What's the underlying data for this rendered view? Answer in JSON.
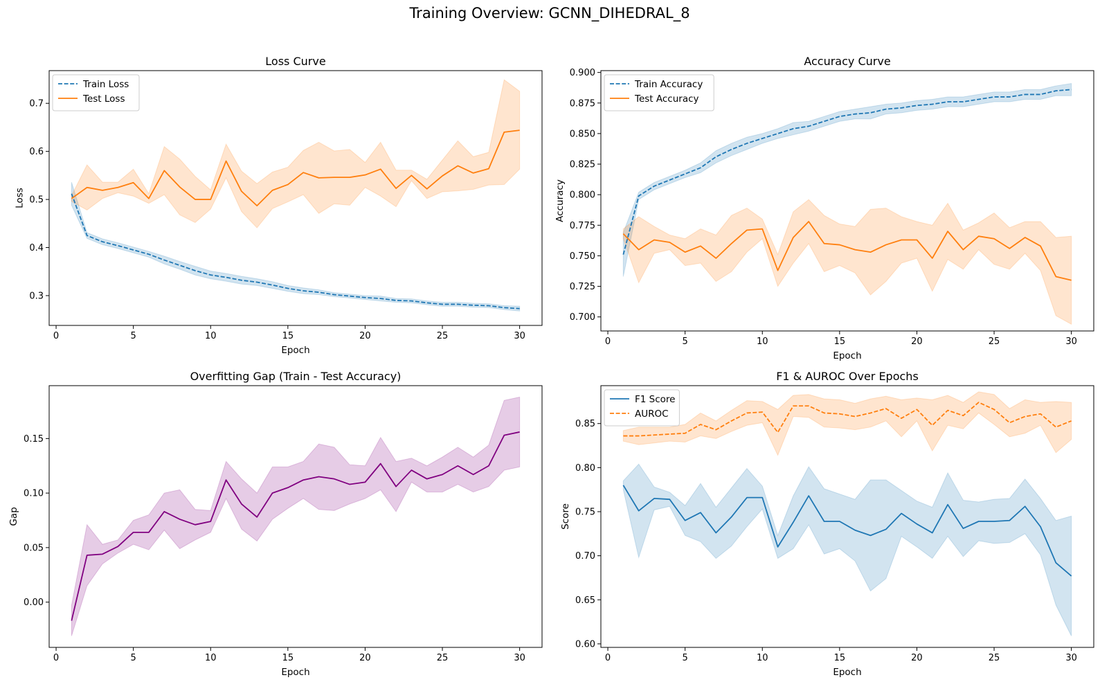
{
  "figure": {
    "title": "Training Overview: GCNN_DIHEDRAL_8"
  },
  "chart_data": [
    {
      "id": "loss",
      "type": "line",
      "title": "Loss Curve",
      "xlabel": "Epoch",
      "ylabel": "Loss",
      "xlim": [
        -0.45,
        31.45
      ],
      "ylim": [
        0.238,
        0.768
      ],
      "xticks": [
        0,
        5,
        10,
        15,
        20,
        25,
        30
      ],
      "xtick_labels": [
        "0",
        "5",
        "10",
        "15",
        "20",
        "25",
        "30"
      ],
      "yticks": [
        0.3,
        0.4,
        0.5,
        0.6,
        0.7
      ],
      "ytick_labels": [
        "0.3",
        "0.4",
        "0.5",
        "0.6",
        "0.7"
      ],
      "grid": false,
      "legend": "upper-left",
      "x": [
        1,
        2,
        3,
        4,
        5,
        6,
        7,
        8,
        9,
        10,
        11,
        12,
        13,
        14,
        15,
        16,
        17,
        18,
        19,
        20,
        21,
        22,
        23,
        24,
        25,
        26,
        27,
        28,
        29,
        30
      ],
      "series": [
        {
          "name": "Train Loss",
          "color": "#1f77b4",
          "dash": "dashed",
          "values": [
            0.512,
            0.425,
            0.412,
            0.404,
            0.395,
            0.386,
            0.374,
            0.363,
            0.352,
            0.343,
            0.338,
            0.332,
            0.328,
            0.322,
            0.315,
            0.31,
            0.307,
            0.302,
            0.299,
            0.296,
            0.294,
            0.29,
            0.289,
            0.285,
            0.282,
            0.282,
            0.28,
            0.279,
            0.275,
            0.273
          ],
          "lower": [
            0.488,
            0.419,
            0.406,
            0.398,
            0.389,
            0.38,
            0.366,
            0.355,
            0.343,
            0.335,
            0.33,
            0.324,
            0.321,
            0.315,
            0.309,
            0.304,
            0.302,
            0.298,
            0.295,
            0.292,
            0.289,
            0.286,
            0.285,
            0.281,
            0.278,
            0.278,
            0.276,
            0.275,
            0.271,
            0.268
          ],
          "upper": [
            0.536,
            0.431,
            0.418,
            0.41,
            0.401,
            0.392,
            0.382,
            0.371,
            0.361,
            0.351,
            0.346,
            0.34,
            0.335,
            0.329,
            0.321,
            0.316,
            0.312,
            0.306,
            0.303,
            0.3,
            0.299,
            0.294,
            0.293,
            0.289,
            0.286,
            0.286,
            0.284,
            0.283,
            0.279,
            0.278
          ]
        },
        {
          "name": "Test Loss",
          "color": "#ff7f0e",
          "dash": "solid",
          "values": [
            0.502,
            0.525,
            0.519,
            0.525,
            0.535,
            0.502,
            0.56,
            0.526,
            0.5,
            0.5,
            0.58,
            0.517,
            0.487,
            0.519,
            0.531,
            0.556,
            0.545,
            0.546,
            0.546,
            0.551,
            0.563,
            0.523,
            0.55,
            0.522,
            0.549,
            0.57,
            0.555,
            0.564,
            0.64,
            0.644
          ],
          "lower": [
            0.496,
            0.478,
            0.502,
            0.514,
            0.507,
            0.492,
            0.51,
            0.468,
            0.452,
            0.48,
            0.545,
            0.475,
            0.441,
            0.481,
            0.495,
            0.51,
            0.471,
            0.491,
            0.488,
            0.525,
            0.507,
            0.485,
            0.539,
            0.502,
            0.516,
            0.518,
            0.521,
            0.53,
            0.531,
            0.563
          ],
          "upper": [
            0.508,
            0.572,
            0.536,
            0.536,
            0.563,
            0.512,
            0.61,
            0.584,
            0.548,
            0.52,
            0.615,
            0.559,
            0.533,
            0.557,
            0.567,
            0.602,
            0.619,
            0.601,
            0.604,
            0.577,
            0.619,
            0.561,
            0.561,
            0.542,
            0.582,
            0.622,
            0.589,
            0.598,
            0.749,
            0.725
          ]
        }
      ]
    },
    {
      "id": "accuracy",
      "type": "line",
      "title": "Accuracy Curve",
      "xlabel": "Epoch",
      "ylabel": "Accuracy",
      "xlim": [
        -0.45,
        31.45
      ],
      "ylim": [
        0.6885,
        0.9015
      ],
      "xticks": [
        0,
        5,
        10,
        15,
        20,
        25,
        30
      ],
      "xtick_labels": [
        "0",
        "5",
        "10",
        "15",
        "20",
        "25",
        "30"
      ],
      "yticks": [
        0.7,
        0.725,
        0.75,
        0.775,
        0.8,
        0.825,
        0.85,
        0.875,
        0.9
      ],
      "ytick_labels": [
        "0.700",
        "0.725",
        "0.750",
        "0.775",
        "0.800",
        "0.825",
        "0.850",
        "0.875",
        "0.900"
      ],
      "grid": false,
      "legend": "upper-left",
      "x": [
        1,
        2,
        3,
        4,
        5,
        6,
        7,
        8,
        9,
        10,
        11,
        12,
        13,
        14,
        15,
        16,
        17,
        18,
        19,
        20,
        21,
        22,
        23,
        24,
        25,
        26,
        27,
        28,
        29,
        30
      ],
      "series": [
        {
          "name": "Train Accuracy",
          "color": "#1f77b4",
          "dash": "dashed",
          "values": [
            0.751,
            0.799,
            0.807,
            0.812,
            0.817,
            0.822,
            0.831,
            0.837,
            0.842,
            0.846,
            0.85,
            0.854,
            0.856,
            0.86,
            0.864,
            0.866,
            0.867,
            0.87,
            0.871,
            0.873,
            0.874,
            0.876,
            0.876,
            0.878,
            0.88,
            0.88,
            0.882,
            0.882,
            0.885,
            0.886
          ],
          "lower": [
            0.733,
            0.796,
            0.804,
            0.809,
            0.814,
            0.818,
            0.826,
            0.832,
            0.837,
            0.842,
            0.846,
            0.849,
            0.852,
            0.856,
            0.86,
            0.862,
            0.862,
            0.866,
            0.867,
            0.869,
            0.87,
            0.872,
            0.872,
            0.874,
            0.876,
            0.876,
            0.878,
            0.878,
            0.881,
            0.881
          ],
          "upper": [
            0.769,
            0.802,
            0.81,
            0.815,
            0.82,
            0.826,
            0.836,
            0.842,
            0.847,
            0.85,
            0.854,
            0.859,
            0.86,
            0.864,
            0.868,
            0.87,
            0.872,
            0.874,
            0.875,
            0.877,
            0.878,
            0.88,
            0.88,
            0.882,
            0.884,
            0.884,
            0.886,
            0.886,
            0.889,
            0.891
          ]
        },
        {
          "name": "Test Accuracy",
          "color": "#ff7f0e",
          "dash": "solid",
          "values": [
            0.768,
            0.755,
            0.763,
            0.761,
            0.753,
            0.758,
            0.748,
            0.76,
            0.771,
            0.772,
            0.738,
            0.765,
            0.778,
            0.76,
            0.759,
            0.755,
            0.753,
            0.759,
            0.763,
            0.763,
            0.748,
            0.77,
            0.755,
            0.766,
            0.764,
            0.756,
            0.765,
            0.758,
            0.733,
            0.73
          ],
          "lower": [
            0.764,
            0.728,
            0.752,
            0.755,
            0.742,
            0.744,
            0.729,
            0.737,
            0.753,
            0.764,
            0.725,
            0.744,
            0.76,
            0.737,
            0.742,
            0.736,
            0.718,
            0.729,
            0.744,
            0.748,
            0.721,
            0.747,
            0.739,
            0.755,
            0.743,
            0.739,
            0.752,
            0.738,
            0.701,
            0.694
          ],
          "upper": [
            0.772,
            0.782,
            0.774,
            0.767,
            0.764,
            0.772,
            0.767,
            0.783,
            0.789,
            0.78,
            0.751,
            0.786,
            0.796,
            0.783,
            0.776,
            0.774,
            0.788,
            0.789,
            0.782,
            0.778,
            0.775,
            0.793,
            0.771,
            0.777,
            0.785,
            0.773,
            0.778,
            0.778,
            0.765,
            0.766
          ]
        }
      ]
    },
    {
      "id": "gap",
      "type": "line",
      "title": "Overfitting Gap (Train - Test Accuracy)",
      "xlabel": "Epoch",
      "ylabel": "Gap",
      "xlim": [
        -0.45,
        31.45
      ],
      "ylim": [
        -0.0415,
        0.1985
      ],
      "xticks": [
        0,
        5,
        10,
        15,
        20,
        25,
        30
      ],
      "xtick_labels": [
        "0",
        "5",
        "10",
        "15",
        "20",
        "25",
        "30"
      ],
      "yticks": [
        0.0,
        0.05,
        0.1,
        0.15
      ],
      "ytick_labels": [
        "0.00",
        "0.05",
        "0.10",
        "0.15"
      ],
      "grid": false,
      "legend": "none",
      "x": [
        1,
        2,
        3,
        4,
        5,
        6,
        7,
        8,
        9,
        10,
        11,
        12,
        13,
        14,
        15,
        16,
        17,
        18,
        19,
        20,
        21,
        22,
        23,
        24,
        25,
        26,
        27,
        28,
        29,
        30
      ],
      "series": [
        {
          "color": "#800080",
          "dash": "solid",
          "values": [
            -0.017,
            0.043,
            0.044,
            0.051,
            0.064,
            0.064,
            0.083,
            0.076,
            0.071,
            0.074,
            0.112,
            0.09,
            0.078,
            0.1,
            0.105,
            0.112,
            0.115,
            0.113,
            0.108,
            0.11,
            0.127,
            0.106,
            0.121,
            0.113,
            0.117,
            0.125,
            0.117,
            0.125,
            0.153,
            0.156
          ],
          "lower": [
            -0.031,
            0.015,
            0.035,
            0.045,
            0.053,
            0.048,
            0.066,
            0.049,
            0.057,
            0.064,
            0.095,
            0.067,
            0.056,
            0.076,
            0.086,
            0.095,
            0.085,
            0.084,
            0.09,
            0.095,
            0.103,
            0.083,
            0.11,
            0.101,
            0.101,
            0.108,
            0.101,
            0.106,
            0.121,
            0.124
          ],
          "upper": [
            -0.003,
            0.071,
            0.053,
            0.057,
            0.075,
            0.08,
            0.1,
            0.103,
            0.085,
            0.084,
            0.129,
            0.113,
            0.1,
            0.124,
            0.124,
            0.129,
            0.145,
            0.142,
            0.126,
            0.125,
            0.151,
            0.129,
            0.132,
            0.125,
            0.133,
            0.142,
            0.133,
            0.144,
            0.185,
            0.188
          ]
        }
      ]
    },
    {
      "id": "f1_auroc",
      "type": "line",
      "title": "F1 & AUROC Over Epochs",
      "xlabel": "Epoch",
      "ylabel": "Score",
      "xlim": [
        -0.45,
        31.45
      ],
      "ylim": [
        0.596,
        0.893
      ],
      "xticks": [
        0,
        5,
        10,
        15,
        20,
        25,
        30
      ],
      "xtick_labels": [
        "0",
        "5",
        "10",
        "15",
        "20",
        "25",
        "30"
      ],
      "yticks": [
        0.6,
        0.65,
        0.7,
        0.75,
        0.8,
        0.85
      ],
      "ytick_labels": [
        "0.60",
        "0.65",
        "0.70",
        "0.75",
        "0.80",
        "0.85"
      ],
      "grid": false,
      "legend": "upper-left",
      "x": [
        1,
        2,
        3,
        4,
        5,
        6,
        7,
        8,
        9,
        10,
        11,
        12,
        13,
        14,
        15,
        16,
        17,
        18,
        19,
        20,
        21,
        22,
        23,
        24,
        25,
        26,
        27,
        28,
        29,
        30
      ],
      "series": [
        {
          "name": "F1 Score",
          "color": "#1f77b4",
          "dash": "solid",
          "values": [
            0.78,
            0.751,
            0.765,
            0.764,
            0.74,
            0.749,
            0.726,
            0.744,
            0.766,
            0.766,
            0.71,
            0.738,
            0.768,
            0.739,
            0.739,
            0.729,
            0.723,
            0.73,
            0.748,
            0.736,
            0.726,
            0.758,
            0.731,
            0.739,
            0.739,
            0.74,
            0.756,
            0.733,
            0.692,
            0.677
          ],
          "lower": [
            0.775,
            0.698,
            0.752,
            0.756,
            0.723,
            0.716,
            0.697,
            0.711,
            0.733,
            0.753,
            0.697,
            0.708,
            0.735,
            0.702,
            0.708,
            0.694,
            0.66,
            0.674,
            0.722,
            0.71,
            0.697,
            0.722,
            0.699,
            0.717,
            0.714,
            0.715,
            0.725,
            0.701,
            0.644,
            0.609
          ],
          "upper": [
            0.785,
            0.804,
            0.778,
            0.772,
            0.757,
            0.782,
            0.755,
            0.777,
            0.799,
            0.779,
            0.723,
            0.768,
            0.801,
            0.776,
            0.77,
            0.764,
            0.786,
            0.786,
            0.774,
            0.762,
            0.755,
            0.794,
            0.763,
            0.761,
            0.764,
            0.765,
            0.787,
            0.765,
            0.74,
            0.745
          ]
        },
        {
          "name": "AUROC",
          "color": "#ff7f0e",
          "dash": "dashed",
          "values": [
            0.836,
            0.836,
            0.837,
            0.838,
            0.839,
            0.849,
            0.843,
            0.853,
            0.862,
            0.863,
            0.84,
            0.87,
            0.87,
            0.862,
            0.861,
            0.858,
            0.862,
            0.867,
            0.856,
            0.866,
            0.848,
            0.865,
            0.859,
            0.874,
            0.866,
            0.851,
            0.858,
            0.861,
            0.846,
            0.853
          ],
          "lower": [
            0.83,
            0.826,
            0.828,
            0.83,
            0.829,
            0.836,
            0.833,
            0.841,
            0.848,
            0.851,
            0.814,
            0.858,
            0.857,
            0.846,
            0.845,
            0.843,
            0.846,
            0.853,
            0.835,
            0.853,
            0.819,
            0.848,
            0.844,
            0.862,
            0.849,
            0.835,
            0.839,
            0.848,
            0.817,
            0.832
          ],
          "upper": [
            0.842,
            0.846,
            0.846,
            0.846,
            0.849,
            0.862,
            0.853,
            0.865,
            0.876,
            0.875,
            0.866,
            0.882,
            0.883,
            0.878,
            0.877,
            0.873,
            0.878,
            0.881,
            0.877,
            0.879,
            0.877,
            0.882,
            0.874,
            0.886,
            0.883,
            0.867,
            0.877,
            0.874,
            0.875,
            0.874
          ]
        }
      ]
    }
  ]
}
